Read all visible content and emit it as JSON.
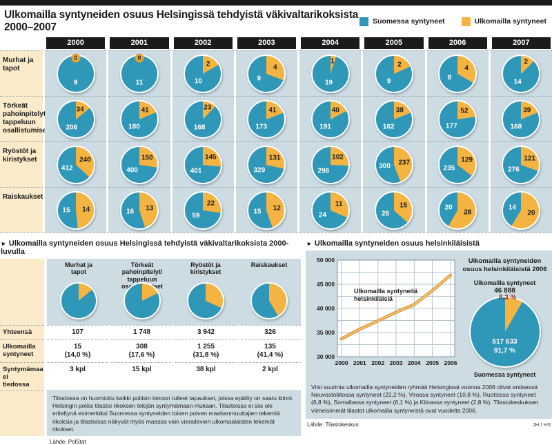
{
  "title": "Ulkomailla syntyneiden osuus Helsingissä tehdyistä väkivaltarikoksista 2000–2007",
  "legend": [
    {
      "label": "Suomessa syntyneet",
      "color": "#2F97B8"
    },
    {
      "label": "Ulkomailla syntyneet",
      "color": "#F5B341"
    }
  ],
  "colors": {
    "blue": "#2F97B8",
    "orange": "#F5B341",
    "cell_bg": "#CDDCE3",
    "cream": "#FBEBCB",
    "bar_black": "#1B1B1B",
    "grid_line": "#B5C4CA",
    "plot_border": "#7E949C",
    "line_edge": "#D1913B",
    "line_core": "#FBC768",
    "abroad_pct_text": "#97311D"
  },
  "population": {
    "footnote": "Viisi suurinta ulkomailla syntyneiden ryhmää Helsingissä vuonna 2006 olivat entisessä Neuvostoliitossa syntyneet (22,2 %), Virossa syntyneet (10,8 %), Ruotsissa syntyneet (6,8 %), Somaliassa syntyneet (6,1 %) ja Kiinassa syntyneet (2,8 %). Tilastokeskuksen viimeisimmät tilastot ulkomailla syntyneistä ovat vuodelta 2006.",
    "source": "Lähde: Tilastokeskus",
    "credit": "JH / HS"
  },
  "chart_data": [
    {
      "type": "pie",
      "id": "crime-pie-grid",
      "title": "Ulkomailla syntyneiden osuus Helsingissä tehdyistä väkivaltarikoksista 2000–2007",
      "legend": [
        "Suomessa syntyneet",
        "Ulkomailla syntyneet"
      ],
      "years": [
        "2000",
        "2001",
        "2002",
        "2003",
        "2004",
        "2005",
        "2006",
        "2007"
      ],
      "rows": [
        {
          "category": "Murhat ja tapot",
          "label_display": "Murhat ja\ntapot",
          "suomessa": [
            9,
            11,
            10,
            9,
            19,
            9,
            8,
            14
          ],
          "ulkomailla": [
            0,
            0,
            2,
            4,
            1,
            2,
            4,
            2
          ]
        },
        {
          "category": "Törkeät pahoinpitelyt/tappeluun osallistumiset",
          "label_display": "Törkeät\npahoinpitelyt/\ntappeluun\nosallistumiset",
          "suomessa": [
            206,
            180,
            168,
            173,
            191,
            162,
            177,
            168
          ],
          "ulkomailla": [
            34,
            41,
            23,
            41,
            40,
            38,
            52,
            39
          ]
        },
        {
          "category": "Ryöstöt ja kiristykset",
          "label_display": "Ryöstöt ja\nkiristykset",
          "suomessa": [
            412,
            400,
            401,
            329,
            296,
            300,
            235,
            276
          ],
          "ulkomailla": [
            240,
            150,
            145,
            131,
            102,
            237,
            129,
            121
          ]
        },
        {
          "category": "Raiskaukset",
          "label_display": "Raiskaukset",
          "suomessa": [
            15,
            16,
            59,
            15,
            24,
            26,
            20,
            14
          ],
          "ulkomailla": [
            14,
            13,
            22,
            12,
            11,
            15,
            28,
            20
          ]
        }
      ]
    },
    {
      "type": "table",
      "id": "summary-2000s",
      "title": "Ulkomailla syntyneiden osuus Helsingissä tehdyistä väkivaltarikoksista 2000-luvulla",
      "columns": [
        "Murhat ja\ntapot",
        "Törkeät pahoinpitelyt/\ntappeluun osallistumiset",
        "Ryöstöt ja\nkiristykset",
        "Raiskaukset"
      ],
      "pie_abroad_pct": [
        14.0,
        17.6,
        31.8,
        41.4
      ],
      "rows": [
        {
          "label": "Yhteensä",
          "values": [
            "107",
            "1 748",
            "3 942",
            "326"
          ]
        },
        {
          "label": "Ulkomailla\nsyntyneet",
          "values": [
            "15",
            "308",
            "1 255",
            "135"
          ],
          "sub": [
            "(14,0 %)",
            "(17,6 %)",
            "(31,8 %)",
            "(41,4 %)"
          ]
        },
        {
          "label": "Syntymämaa ei\ntiedossa",
          "values": [
            "3 kpl",
            "15 kpl",
            "38 kpl",
            "2 kpl"
          ]
        }
      ],
      "footnote": "Tilastossa on huomioitu kaikki poliisin tietoon tulleet tapaukset, joissa epäilty on saatu kiinni. Helsingin poliisi tilastoi rikoksen tekijän syntymämaan mukaan. Tilastoissa ei siis ole eriteltynä esimerkiksi Suomessa syntyneiden toisen polven maahanmuuttajien tekemiä rikoksia ja tilastoissa näkyvät myös maassa vain vierailevien ulkomaalaisten tekemät rikokset.",
      "source": "Lähde: PolStat"
    },
    {
      "type": "line",
      "id": "population-line",
      "title": "Ulkomailla syntyneiden osuus helsinkiläisistä",
      "annotation": "Ulkomailla syntyneitä\nhelsinkiläisiä",
      "x": [
        2000,
        2001,
        2002,
        2003,
        2004,
        2005,
        2006
      ],
      "values": [
        33700,
        35700,
        37400,
        39200,
        40800,
        43700,
        46888
      ],
      "ylim": [
        30000,
        50000
      ],
      "y_tick_step": 2500,
      "y_tick_labels": [
        "50 000",
        "45 000",
        "40 000",
        "35 000",
        "30 000"
      ],
      "grid": true
    },
    {
      "type": "pie",
      "id": "population-2006",
      "title": "Ulkomailla syntyneiden\nosuus helsinkiläisistä 2006",
      "abroad_pct_value": 8.3,
      "slices": [
        {
          "label": "Suomessa syntyneet",
          "value": "517 633",
          "pct": "91,7 %",
          "color_key": "blue"
        },
        {
          "label": "Ulkomailla syntyneet",
          "value": "46 888",
          "pct": "8,3 %",
          "color_key": "orange"
        }
      ]
    }
  ]
}
